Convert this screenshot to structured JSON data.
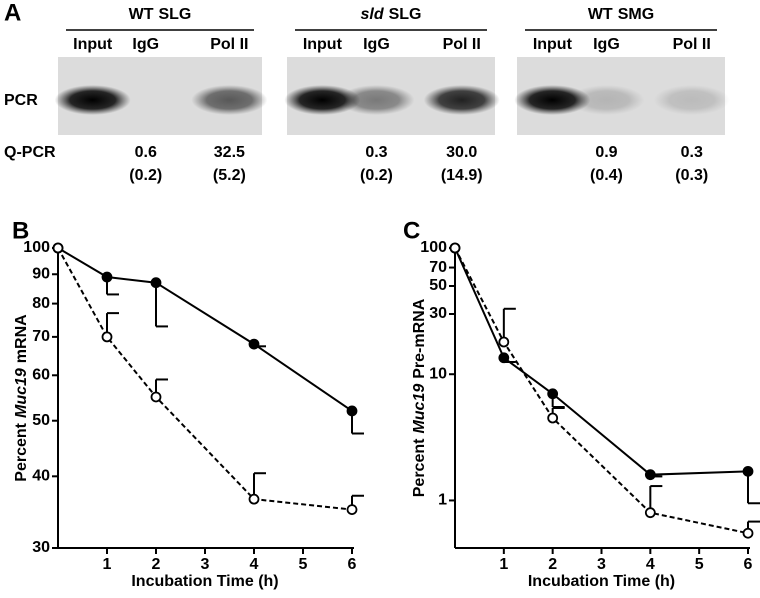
{
  "panel_a": {
    "label": "A",
    "row_labels": [
      "PCR",
      "Q-PCR"
    ],
    "groups": [
      {
        "name": [
          "WT",
          "SLG"
        ],
        "italic_first": false,
        "lanes": [
          "Input",
          "IgG",
          "Pol II"
        ],
        "qpcr_mean": [
          null,
          "0.6",
          "32.5"
        ],
        "qpcr_sd": [
          null,
          "(0.2)",
          "(5.2)"
        ]
      },
      {
        "name": [
          "sld",
          "SLG"
        ],
        "italic_first": true,
        "lanes": [
          "Input",
          "IgG",
          "Pol II"
        ],
        "qpcr_mean": [
          null,
          "0.3",
          "30.0"
        ],
        "qpcr_sd": [
          null,
          "(0.2)",
          "(14.9)"
        ]
      },
      {
        "name": [
          "WT",
          "SMG"
        ],
        "italic_first": false,
        "lanes": [
          "Input",
          "IgG",
          "Pol II"
        ],
        "qpcr_mean": [
          null,
          "0.9",
          "0.3"
        ],
        "qpcr_sd": [
          null,
          "(0.4)",
          "(0.3)"
        ]
      }
    ]
  },
  "chart_data": [
    {
      "type": "line",
      "label": "B",
      "xlabel": "Incubation Time (h)",
      "ylabel": [
        "Percent",
        "Muc19",
        "mRNA"
      ],
      "x": [
        0,
        1,
        2,
        4,
        6
      ],
      "xlim": [
        0,
        6
      ],
      "xticks": [
        1,
        2,
        3,
        4,
        5,
        6
      ],
      "ylim": [
        30,
        100
      ],
      "yticks": [
        30,
        40,
        50,
        60,
        70,
        80,
        90,
        100
      ],
      "log_y": true,
      "series": [
        {
          "color": "#000000",
          "line_style": "solid",
          "marker": "filled",
          "values": [
            100,
            89,
            87,
            68,
            52
          ],
          "errors": [
            null,
            6,
            14,
            0.6,
            4.5
          ],
          "error_direction": "down"
        },
        {
          "color": "#000000",
          "line_style": "dashed",
          "marker": "open",
          "values": [
            100,
            70,
            55,
            36.5,
            35
          ],
          "errors": [
            null,
            7,
            4,
            4,
            2
          ],
          "error_direction": "up"
        }
      ]
    },
    {
      "type": "line",
      "label": "C",
      "xlabel": "Incubation Time (h)",
      "ylabel": [
        "Percent",
        "Muc19",
        "Pre-mRNA"
      ],
      "x": [
        0,
        1,
        2,
        4,
        6
      ],
      "xlim": [
        0,
        6
      ],
      "xticks": [
        1,
        2,
        3,
        4,
        5,
        6
      ],
      "ylim": [
        0.42,
        100
      ],
      "yticks": [
        1,
        10,
        30,
        50,
        70,
        100
      ],
      "log_y": true,
      "series": [
        {
          "color": "#000000",
          "line_style": "solid",
          "marker": "filled",
          "values": [
            100,
            13.5,
            7,
            1.6,
            1.7
          ],
          "errors": [
            null,
            1,
            1.5,
            0.05,
            0.75
          ],
          "error_direction": "down"
        },
        {
          "color": "#000000",
          "line_style": "dashed",
          "marker": "open",
          "values": [
            100,
            18,
            4.5,
            0.8,
            0.55
          ],
          "errors": [
            null,
            15,
            0.9,
            0.5,
            0.13
          ],
          "error_direction": "up"
        }
      ]
    }
  ]
}
